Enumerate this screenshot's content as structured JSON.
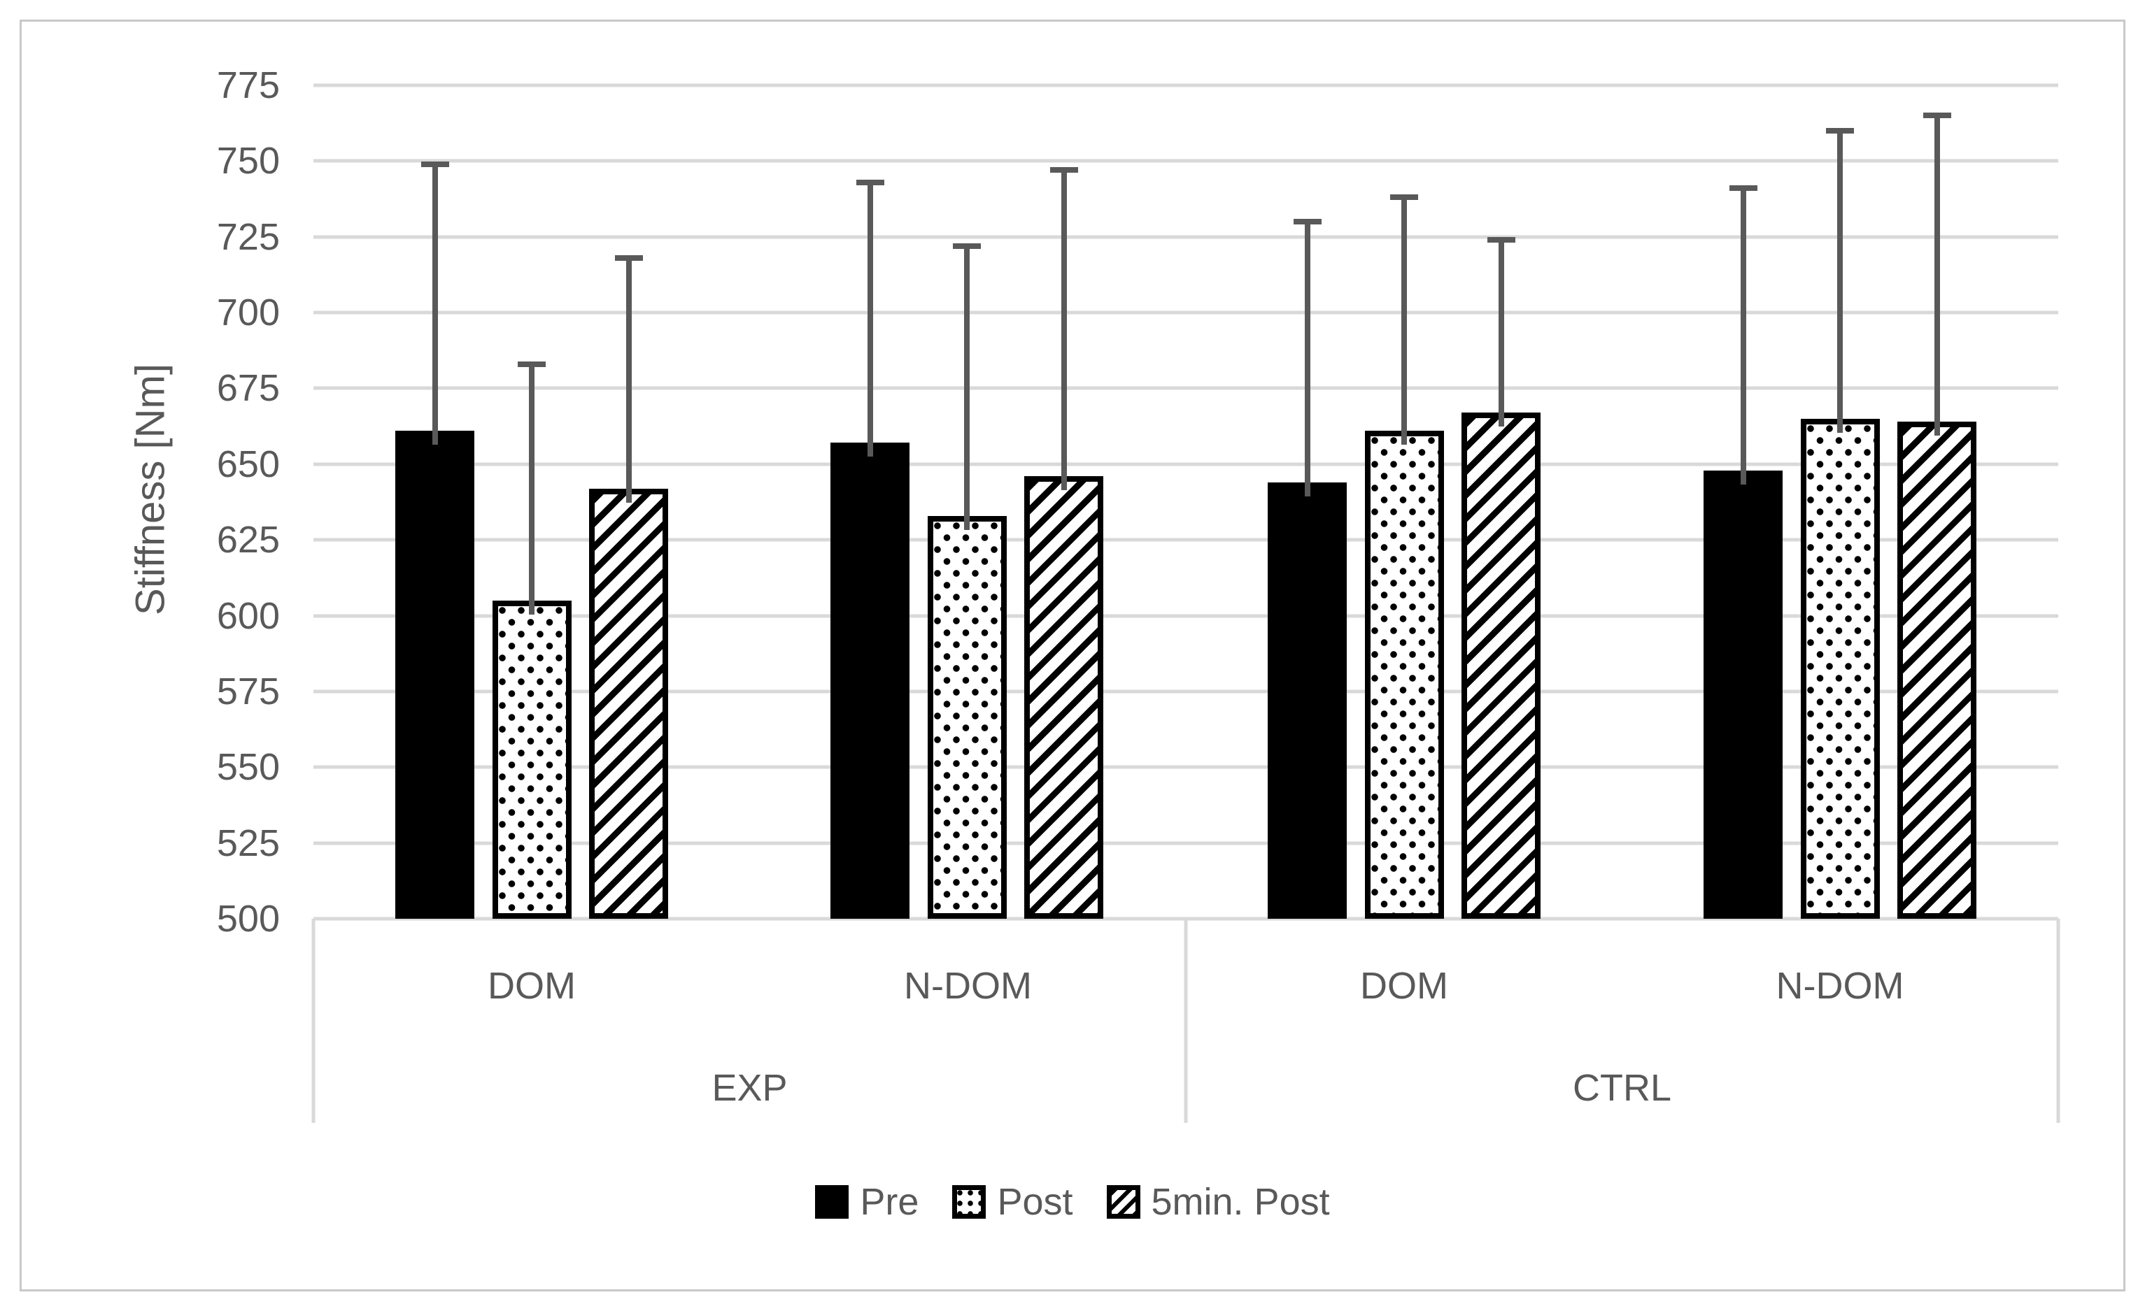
{
  "figure": {
    "background": "#ffffff",
    "border_color": "#c9c9c9"
  },
  "chart_data": {
    "type": "bar",
    "title": "",
    "xlabel": "",
    "ylabel": "Stiffness [Nm]",
    "ylim": [
      500,
      775
    ],
    "ytick_step": 25,
    "yticks": [
      775,
      750,
      725,
      700,
      675,
      650,
      625,
      600,
      575,
      550,
      525,
      500
    ],
    "grid": true,
    "legend_position": "bottom",
    "categories_outer": [
      "EXP",
      "CTRL"
    ],
    "categories_inner": [
      "DOM",
      "N-DOM",
      "DOM",
      "N-DOM"
    ],
    "series": [
      {
        "name": "Pre",
        "pattern": "solid",
        "values": [
          661,
          657,
          644,
          648
        ],
        "errors_up": [
          88,
          86,
          86,
          93
        ]
      },
      {
        "name": "Post",
        "pattern": "dots",
        "values": [
          605,
          633,
          661,
          665
        ],
        "errors_up": [
          78,
          89,
          77,
          95
        ]
      },
      {
        "name": "5min. Post",
        "pattern": "diagonal",
        "values": [
          642,
          646,
          667,
          664
        ],
        "errors_up": [
          76,
          101,
          57,
          101
        ]
      }
    ],
    "error_bars": "upper standard deviation whiskers with caps",
    "colors": {
      "bar_fill": "#000000",
      "pattern_background": "#ffffff",
      "gridline": "#d9d9d9",
      "error_bar": "#595959",
      "text": "#595959",
      "divider": "#d9d9d9"
    }
  }
}
